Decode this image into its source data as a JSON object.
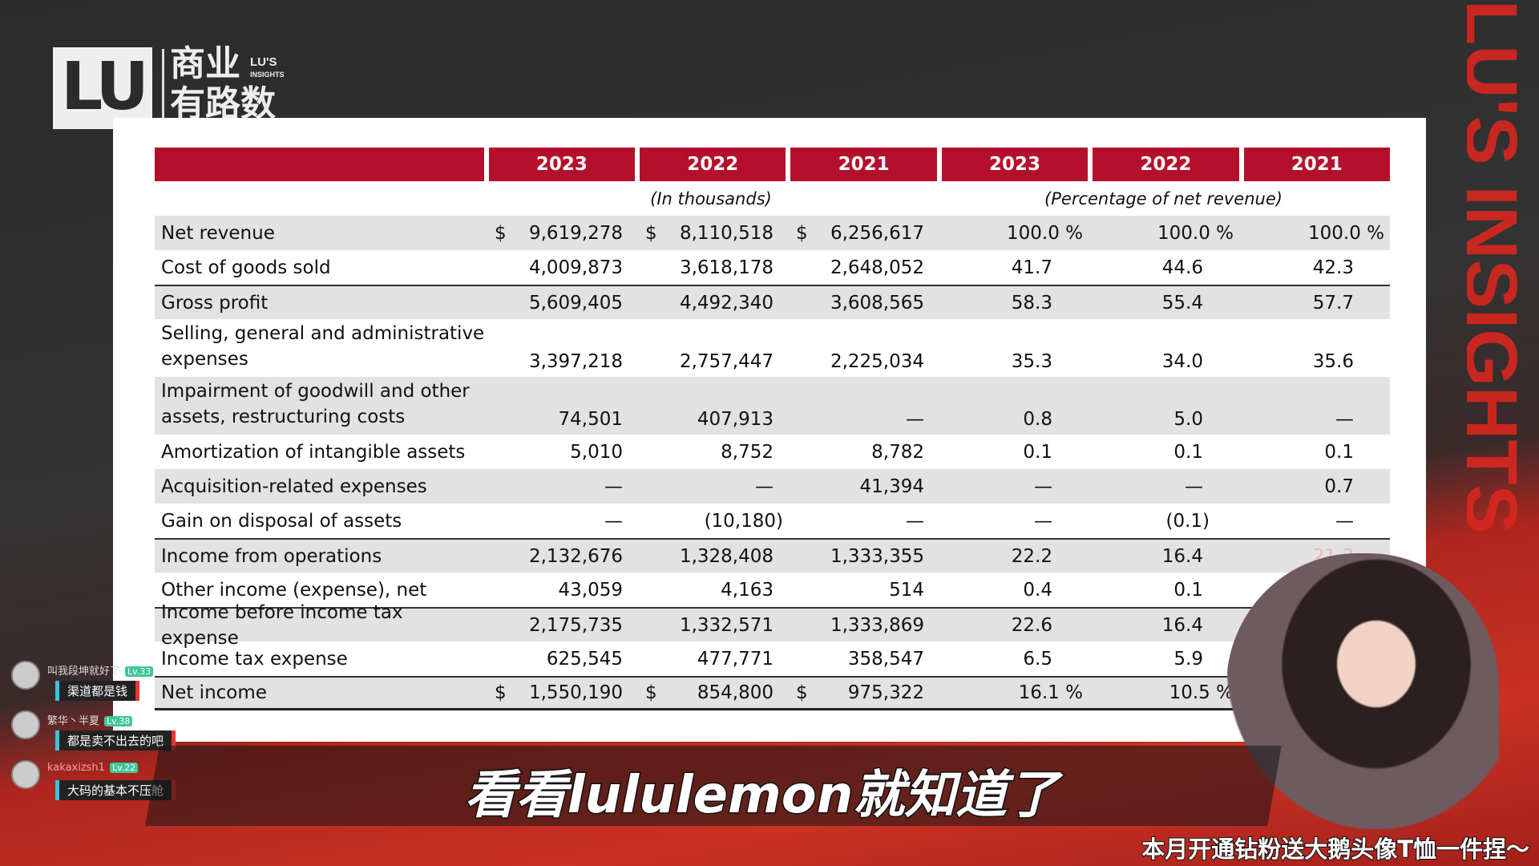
{
  "logo": {
    "mark": "LU",
    "cn_line1": "商业",
    "cn_line2": "有路数",
    "en_line1": "LU'S",
    "en_line2": "INSIGHTS"
  },
  "side_banner": "LU'S INSIGHTS",
  "table": {
    "header": [
      "",
      "2023",
      "2022",
      "2021",
      "2023",
      "2022",
      "2021"
    ],
    "subheader_left": "(In thousands)",
    "subheader_right": "(Percentage of net revenue)",
    "rows": [
      {
        "label": "Net revenue",
        "values": [
          "9,619,278",
          "8,110,518",
          "6,256,617",
          "100.0 %",
          "100.0 %",
          "100.0 %"
        ],
        "dollar": true
      },
      {
        "label": "Cost of goods sold",
        "values": [
          "4,009,873",
          "3,618,178",
          "2,648,052",
          "41.7",
          "44.6",
          "42.3"
        ]
      },
      {
        "label": "Gross profit",
        "values": [
          "5,609,405",
          "4,492,340",
          "3,608,565",
          "58.3",
          "55.4",
          "57.7"
        ]
      },
      {
        "label": "Selling, general and administrative expenses",
        "values": [
          "3,397,218",
          "2,757,447",
          "2,225,034",
          "35.3",
          "34.0",
          "35.6"
        ]
      },
      {
        "label": "Impairment of goodwill and other assets, restructuring costs",
        "values": [
          "74,501",
          "407,913",
          "—",
          "0.8",
          "5.0",
          "—"
        ]
      },
      {
        "label": "Amortization of intangible assets",
        "values": [
          "5,010",
          "8,752",
          "8,782",
          "0.1",
          "0.1",
          "0.1"
        ]
      },
      {
        "label": "Acquisition-related expenses",
        "values": [
          "—",
          "—",
          "41,394",
          "—",
          "—",
          "0.7"
        ]
      },
      {
        "label": "Gain on disposal of assets",
        "values": [
          "—",
          "(10,180)",
          "—",
          "—",
          "(0.1)",
          "—"
        ]
      },
      {
        "label": "Income from operations",
        "values": [
          "2,132,676",
          "1,328,408",
          "1,333,355",
          "22.2",
          "16.4",
          "21.3"
        ]
      },
      {
        "label": "Other income (expense), net",
        "values": [
          "43,059",
          "4,163",
          "514",
          "0.4",
          "0.1",
          ""
        ]
      },
      {
        "label": "Income before income tax expense",
        "values": [
          "2,175,735",
          "1,332,571",
          "1,333,869",
          "22.6",
          "16.4",
          ""
        ]
      },
      {
        "label": "Income tax expense",
        "values": [
          "625,545",
          "477,771",
          "358,547",
          "6.5",
          "5.9",
          ""
        ]
      },
      {
        "label": "Net income",
        "values": [
          "1,550,190",
          "854,800",
          "975,322",
          "16.1 %",
          "10.5 %",
          ""
        ],
        "dollar": true
      }
    ],
    "currency_symbol": "$"
  },
  "chat": [
    {
      "user": "叫我段坤就好了",
      "level": "Lv.33",
      "message": "渠道都是钱"
    },
    {
      "user": "繁华丶半夏",
      "level": "Lv.38",
      "message": "都是卖不出去的吧"
    },
    {
      "user": "kakaxizsh1",
      "level": "Lv.22",
      "message": "大码的基本不压舱"
    }
  ],
  "caption": "看看lululemon就知道了",
  "promo": "本月开通钻粉送大鹅头像T恤一件捏～",
  "colors": {
    "header_red": "#b5102b",
    "row_gray": "#e2e2e2",
    "level_badge": "#3fc79a"
  }
}
